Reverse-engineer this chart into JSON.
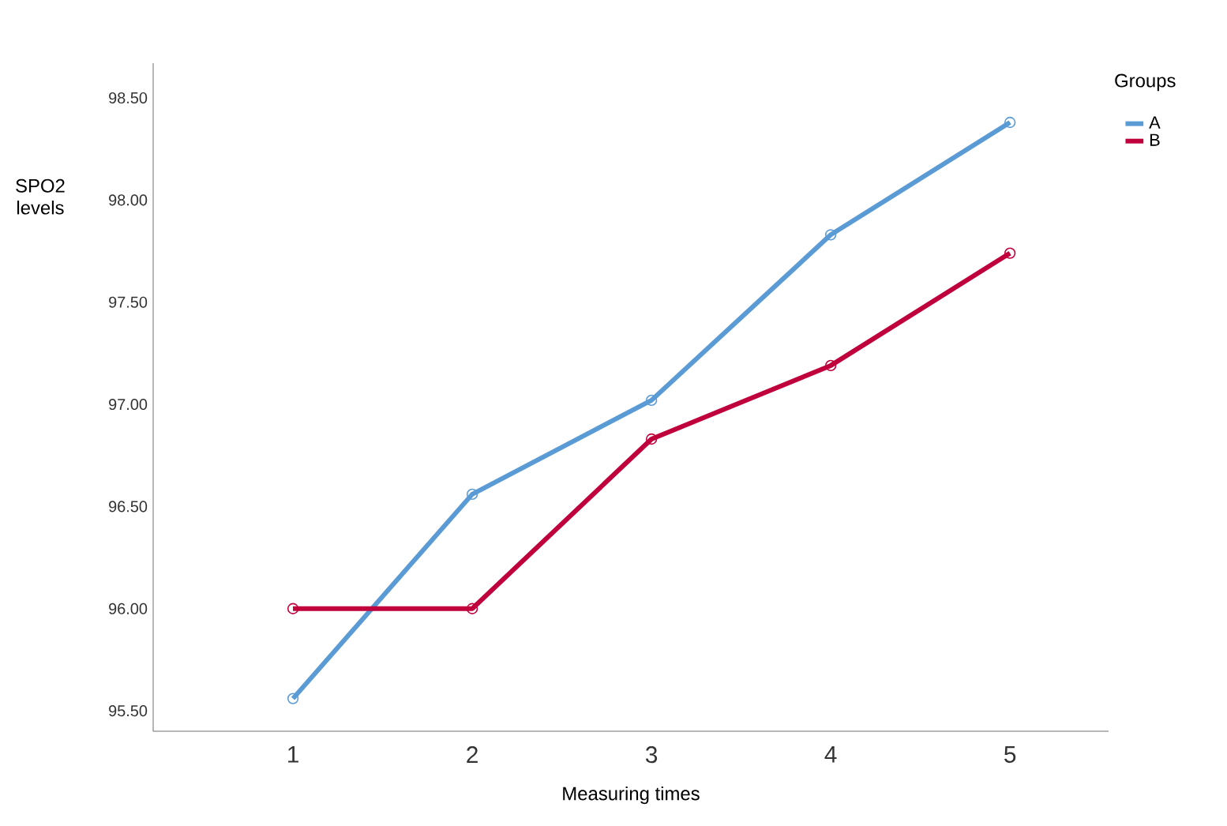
{
  "chart_data": {
    "type": "line",
    "xlabel": "Measuring times",
    "ylabel": "SPO2 levels",
    "legend_title": "Groups",
    "categories": [
      "1",
      "2",
      "3",
      "4",
      "5"
    ],
    "series": [
      {
        "name": "A",
        "color": "#5b9bd5",
        "values": [
          95.56,
          96.56,
          97.02,
          97.83,
          98.38
        ]
      },
      {
        "name": "B",
        "color": "#c0003c",
        "values": [
          96.0,
          96.0,
          96.83,
          97.19,
          97.74
        ]
      }
    ],
    "ylim": [
      95.4,
      98.67
    ],
    "yticks": [
      {
        "value": 95.5,
        "label": "95.50"
      },
      {
        "value": 96.0,
        "label": "96.00"
      },
      {
        "value": 96.5,
        "label": "96.50"
      },
      {
        "value": 97.0,
        "label": "97.00"
      },
      {
        "value": 97.5,
        "label": "97.50"
      },
      {
        "value": 98.0,
        "label": "98.00"
      },
      {
        "value": 98.5,
        "label": "98.50"
      }
    ],
    "legend": "top right",
    "marker": "circle",
    "line_style": "solid",
    "grid": false
  }
}
